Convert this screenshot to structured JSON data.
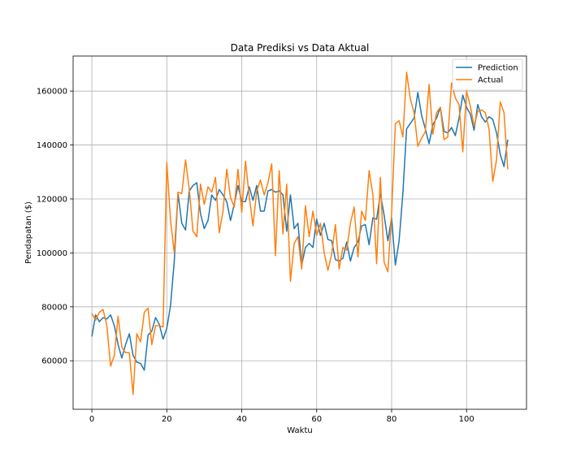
{
  "chart_data": {
    "type": "line",
    "title": "Data Prediksi vs Data Aktual",
    "xlabel": "Waktu",
    "ylabel": "Pendapatan ($)",
    "xlim": [
      -5,
      116
    ],
    "ylim": [
      42000,
      173000
    ],
    "xticks": [
      0,
      20,
      40,
      60,
      80,
      100
    ],
    "yticks": [
      60000,
      80000,
      100000,
      120000,
      140000,
      160000
    ],
    "grid": true,
    "legend_position": "top-right",
    "series": [
      {
        "name": "Prediction",
        "color": "#1f77b4",
        "values": [
          69000,
          77000,
          74500,
          76000,
          75500,
          77000,
          73000,
          66000,
          61000,
          66000,
          70000,
          62000,
          59500,
          59000,
          56500,
          69500,
          71000,
          76000,
          73500,
          68000,
          72000,
          80500,
          97000,
          122000,
          111000,
          108500,
          123000,
          125000,
          126000,
          114500,
          109000,
          112000,
          121500,
          119500,
          123500,
          121500,
          119000,
          112000,
          118000,
          125000,
          119000,
          119000,
          124500,
          119500,
          125000,
          115500,
          115500,
          123000,
          123500,
          122500,
          123000,
          121500,
          108000,
          121500,
          109000,
          111000,
          95500,
          102000,
          103500,
          102000,
          112500,
          106500,
          111000,
          105000,
          104500,
          97500,
          97000,
          98000,
          104000,
          97000,
          102000,
          104000,
          110000,
          110500,
          103000,
          113000,
          112500,
          122000,
          114000,
          104500,
          113000,
          95500,
          104500,
          122000,
          146000,
          148000,
          150000,
          159500,
          151000,
          146000,
          140500,
          147500,
          150000,
          154000,
          145000,
          144500,
          146500,
          143500,
          150000,
          158500,
          154000,
          151500,
          145500,
          155000,
          150500,
          148500,
          150500,
          149500,
          144500,
          136500,
          132000,
          142000
        ]
      },
      {
        "name": "Actual",
        "color": "#ff7f0e",
        "values": [
          77500,
          75000,
          78000,
          79000,
          73000,
          58000,
          62000,
          76500,
          65000,
          63000,
          63000,
          47500,
          70000,
          67000,
          78000,
          79500,
          66000,
          73000,
          73000,
          72500,
          133500,
          112000,
          100000,
          122500,
          122000,
          134500,
          123500,
          108000,
          106000,
          125500,
          118000,
          124500,
          122500,
          128000,
          107500,
          115500,
          131000,
          120500,
          117000,
          131000,
          115000,
          134000,
          121000,
          110000,
          123000,
          127000,
          121500,
          126000,
          133000,
          99000,
          130500,
          107000,
          125500,
          89500,
          103500,
          106000,
          94000,
          117500,
          106000,
          115500,
          106500,
          111000,
          100000,
          93500,
          99500,
          110500,
          94000,
          102000,
          101000,
          111000,
          117000,
          98500,
          115500,
          112000,
          130500,
          121500,
          96000,
          128000,
          96500,
          93000,
          114500,
          148000,
          149000,
          143000,
          167000,
          157000,
          152000,
          139500,
          142500,
          145000,
          162500,
          144000,
          152000,
          154000,
          142000,
          143000,
          163000,
          157500,
          155000,
          137500,
          160000,
          154500,
          147000,
          152500,
          153000,
          152000,
          146000,
          126500,
          134500,
          156000,
          152000,
          131000
        ]
      }
    ]
  }
}
